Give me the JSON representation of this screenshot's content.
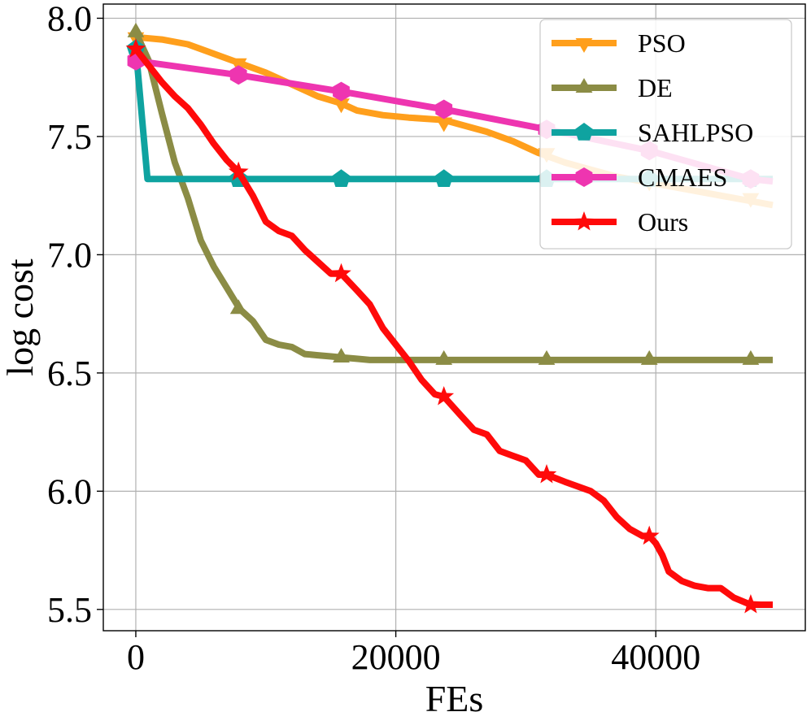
{
  "chart_data": {
    "type": "line",
    "title": "",
    "xlabel": "FEs",
    "ylabel": "log cost",
    "xlim": [
      -2500,
      51500
    ],
    "ylim": [
      5.41,
      8.06
    ],
    "xticks": [
      0,
      20000,
      40000
    ],
    "xtick_labels": [
      "0",
      "20000",
      "40000"
    ],
    "yticks": [
      5.5,
      6.0,
      6.5,
      7.0,
      7.5,
      8.0
    ],
    "ytick_labels": [
      "5.5",
      "6.0",
      "6.5",
      "7.0",
      "7.5",
      "8.0"
    ],
    "grid": true,
    "legend_position": "top-right",
    "series": [
      {
        "name": "PSO",
        "color": "#ff9f1c",
        "marker": "triangle-down",
        "x": [
          0,
          2000,
          4000,
          6000,
          8000,
          10000,
          12000,
          14000,
          15800,
          17000,
          19000,
          21000,
          23700,
          25000,
          27000,
          29000,
          31000,
          33000,
          35000,
          37000,
          39000,
          41000,
          43000,
          45000,
          47000,
          49000
        ],
        "y": [
          7.92,
          7.91,
          7.89,
          7.85,
          7.81,
          7.77,
          7.72,
          7.67,
          7.64,
          7.61,
          7.59,
          7.58,
          7.57,
          7.55,
          7.52,
          7.48,
          7.43,
          7.39,
          7.36,
          7.33,
          7.31,
          7.29,
          7.27,
          7.25,
          7.23,
          7.21
        ],
        "marker_x": [
          0,
          7900,
          15800,
          23700,
          31600,
          39500,
          47300
        ],
        "marker_y": [
          7.92,
          7.81,
          7.64,
          7.56,
          7.43,
          7.31,
          7.24
        ]
      },
      {
        "name": "DE",
        "color": "#8b8c45",
        "marker": "triangle-up",
        "x": [
          0,
          1000,
          2000,
          3000,
          4000,
          5000,
          6000,
          7000,
          8000,
          9000,
          10000,
          11000,
          12000,
          13000,
          14000,
          15000,
          16000,
          17000,
          18000,
          20000,
          25000,
          30000,
          35000,
          40000,
          45000,
          49000
        ],
        "y": [
          7.94,
          7.82,
          7.6,
          7.39,
          7.24,
          7.06,
          6.95,
          6.86,
          6.77,
          6.72,
          6.64,
          6.62,
          6.61,
          6.58,
          6.575,
          6.57,
          6.565,
          6.56,
          6.555,
          6.555,
          6.555,
          6.555,
          6.555,
          6.555,
          6.555,
          6.555
        ],
        "marker_x": [
          0,
          7900,
          15800,
          23700,
          31600,
          39500,
          47300
        ],
        "marker_y": [
          7.94,
          6.77,
          6.565,
          6.555,
          6.555,
          6.555,
          6.555
        ]
      },
      {
        "name": "SAHLPSO",
        "color": "#0fa3a0",
        "marker": "pentagon",
        "x": [
          0,
          900,
          5000,
          10000,
          20000,
          30000,
          40000,
          49000
        ],
        "y": [
          7.87,
          7.32,
          7.32,
          7.32,
          7.32,
          7.32,
          7.32,
          7.32
        ],
        "marker_x": [
          0,
          7900,
          15800,
          23700,
          31600,
          39500,
          47300
        ],
        "marker_y": [
          7.87,
          7.32,
          7.32,
          7.32,
          7.32,
          7.32,
          7.32
        ]
      },
      {
        "name": "CMAES",
        "color": "#ee35b0",
        "marker": "hexagon",
        "x": [
          0,
          7900,
          15800,
          23700,
          31600,
          39500,
          47300,
          49000
        ],
        "y": [
          7.82,
          7.76,
          7.69,
          7.615,
          7.53,
          7.44,
          7.32,
          7.31
        ],
        "marker_x": [
          0,
          7900,
          15800,
          23700,
          31600,
          39500,
          47300
        ],
        "marker_y": [
          7.82,
          7.76,
          7.69,
          7.615,
          7.53,
          7.44,
          7.32
        ]
      },
      {
        "name": "Ours",
        "color": "#ff0a0a",
        "marker": "star",
        "x": [
          0,
          1000,
          2000,
          3000,
          4000,
          5000,
          6000,
          7000,
          7900,
          9000,
          10000,
          11000,
          12000,
          13000,
          14000,
          15000,
          15800,
          17000,
          18000,
          19000,
          20000,
          21000,
          22000,
          23000,
          23700,
          25000,
          26000,
          27000,
          28000,
          29000,
          30000,
          31000,
          31600,
          33000,
          35000,
          36000,
          37000,
          38000,
          39000,
          39500,
          40000,
          40500,
          41000,
          42000,
          43000,
          44000,
          45000,
          46000,
          47300,
          49000
        ],
        "y": [
          7.87,
          7.8,
          7.73,
          7.67,
          7.62,
          7.55,
          7.47,
          7.4,
          7.35,
          7.25,
          7.14,
          7.1,
          7.08,
          7.02,
          6.97,
          6.92,
          6.92,
          6.85,
          6.79,
          6.69,
          6.62,
          6.55,
          6.47,
          6.41,
          6.4,
          6.32,
          6.26,
          6.24,
          6.17,
          6.15,
          6.13,
          6.07,
          6.07,
          6.04,
          6.0,
          5.96,
          5.89,
          5.84,
          5.81,
          5.81,
          5.78,
          5.73,
          5.66,
          5.62,
          5.6,
          5.59,
          5.59,
          5.55,
          5.52,
          5.52
        ],
        "marker_x": [
          0,
          7900,
          15800,
          23700,
          31600,
          39500,
          47300
        ],
        "marker_y": [
          7.87,
          7.35,
          6.92,
          6.4,
          6.07,
          5.81,
          5.52
        ]
      }
    ]
  }
}
